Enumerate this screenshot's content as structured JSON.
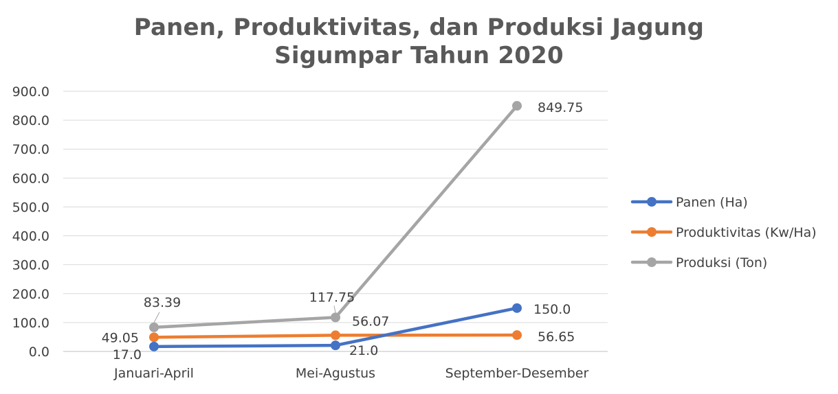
{
  "chart_data": {
    "type": "line",
    "title": "Panen, Produktivitas, dan Produksi Jagung Sigumpar Tahun 2020",
    "title_lines": [
      "Panen, Produktivitas, dan Produksi Jagung",
      "Sigumpar Tahun 2020"
    ],
    "categories": [
      "Januari-April",
      "Mei-Agustus",
      "September-Desember"
    ],
    "y_ticks": [
      "0.0",
      "100.0",
      "200.0",
      "300.0",
      "400.0",
      "500.0",
      "600.0",
      "700.0",
      "800.0",
      "900.0"
    ],
    "ylim": [
      0,
      900
    ],
    "grid": true,
    "legend_position": "right",
    "series": [
      {
        "name": "Panen (Ha)",
        "values": [
          17.0,
          21.0,
          150.0
        ],
        "labels": [
          "17.0",
          "21.0",
          "150.0"
        ],
        "color": "#4472C4"
      },
      {
        "name": "Produktivitas (Kw/Ha)",
        "values": [
          49.05,
          56.07,
          56.65
        ],
        "labels": [
          "49.05",
          "56.07",
          "56.65"
        ],
        "color": "#ED7D31"
      },
      {
        "name": "Produksi (Ton)",
        "values": [
          83.39,
          117.75,
          849.75
        ],
        "labels": [
          "83.39",
          "117.75",
          "849.75"
        ],
        "color": "#A5A5A5"
      }
    ]
  }
}
